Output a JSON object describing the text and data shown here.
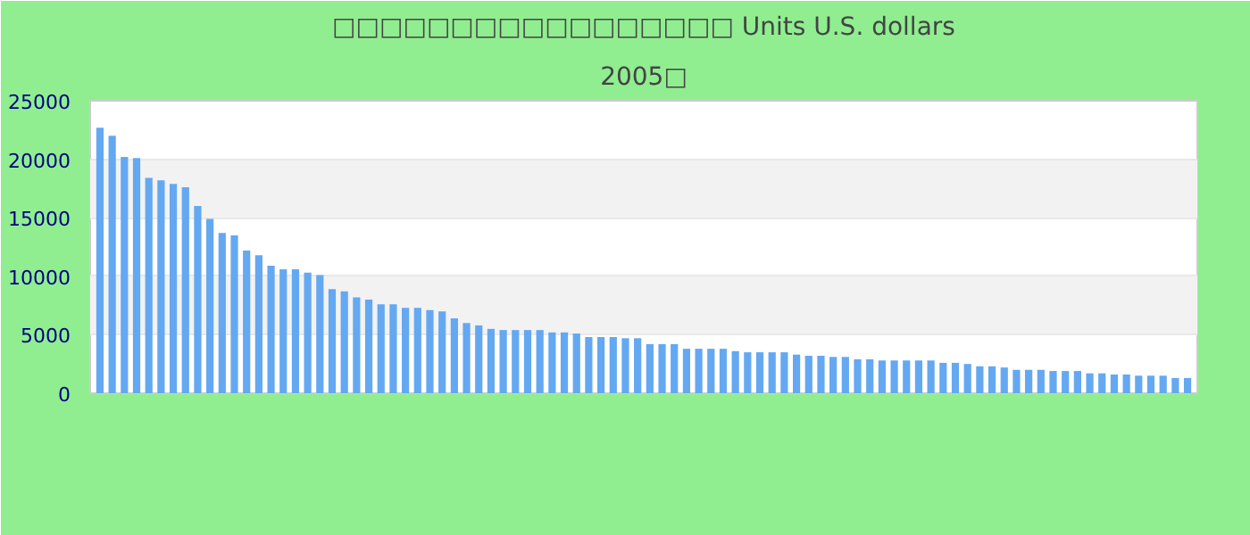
{
  "chart_data": {
    "type": "bar",
    "title": "□□□□□□□□□□□□□□□□□ Units U.S. dollars",
    "subtitle": "2005□",
    "categories": [
      null,
      null,
      null,
      null,
      null,
      null,
      null,
      null,
      null,
      null,
      null,
      null,
      null,
      null,
      null,
      null,
      null,
      null,
      null,
      null,
      null,
      null,
      null,
      null,
      null,
      null,
      null,
      null,
      null,
      null,
      null,
      null,
      null,
      null,
      null,
      null,
      null,
      null,
      null,
      null,
      null,
      null,
      null,
      null,
      null,
      null,
      null,
      null,
      null,
      null,
      null,
      null,
      null,
      null,
      null,
      null,
      null,
      null,
      null,
      null,
      null,
      null,
      null,
      null,
      null,
      null,
      null,
      null,
      null,
      null,
      null,
      null,
      null,
      null,
      null,
      null,
      null,
      null,
      null,
      null,
      null,
      null,
      null,
      null,
      null,
      null,
      null,
      null,
      null,
      null
    ],
    "values": [
      22700,
      22000,
      20200,
      20100,
      18400,
      18200,
      17900,
      17600,
      16000,
      14900,
      13700,
      13500,
      12200,
      11800,
      10900,
      10600,
      10600,
      10300,
      10100,
      8900,
      8700,
      8200,
      8000,
      7600,
      7600,
      7300,
      7300,
      7100,
      7000,
      6400,
      6000,
      5800,
      5500,
      5400,
      5400,
      5400,
      5400,
      5200,
      5200,
      5100,
      4800,
      4800,
      4800,
      4700,
      4700,
      4200,
      4200,
      4200,
      3800,
      3800,
      3800,
      3800,
      3600,
      3500,
      3500,
      3500,
      3500,
      3300,
      3200,
      3200,
      3100,
      3100,
      2900,
      2900,
      2800,
      2800,
      2800,
      2800,
      2800,
      2600,
      2600,
      2500,
      2300,
      2300,
      2200,
      2000,
      2000,
      2000,
      1900,
      1900,
      1900,
      1700,
      1700,
      1600,
      1600,
      1500,
      1500,
      1500,
      1300,
      1300
    ],
    "color": "#64a8f2",
    "ylim": [
      0,
      25000
    ],
    "yticks": [
      0,
      5000,
      10000,
      15000,
      20000,
      25000
    ],
    "grid": "y",
    "tick_labels": "y"
  }
}
